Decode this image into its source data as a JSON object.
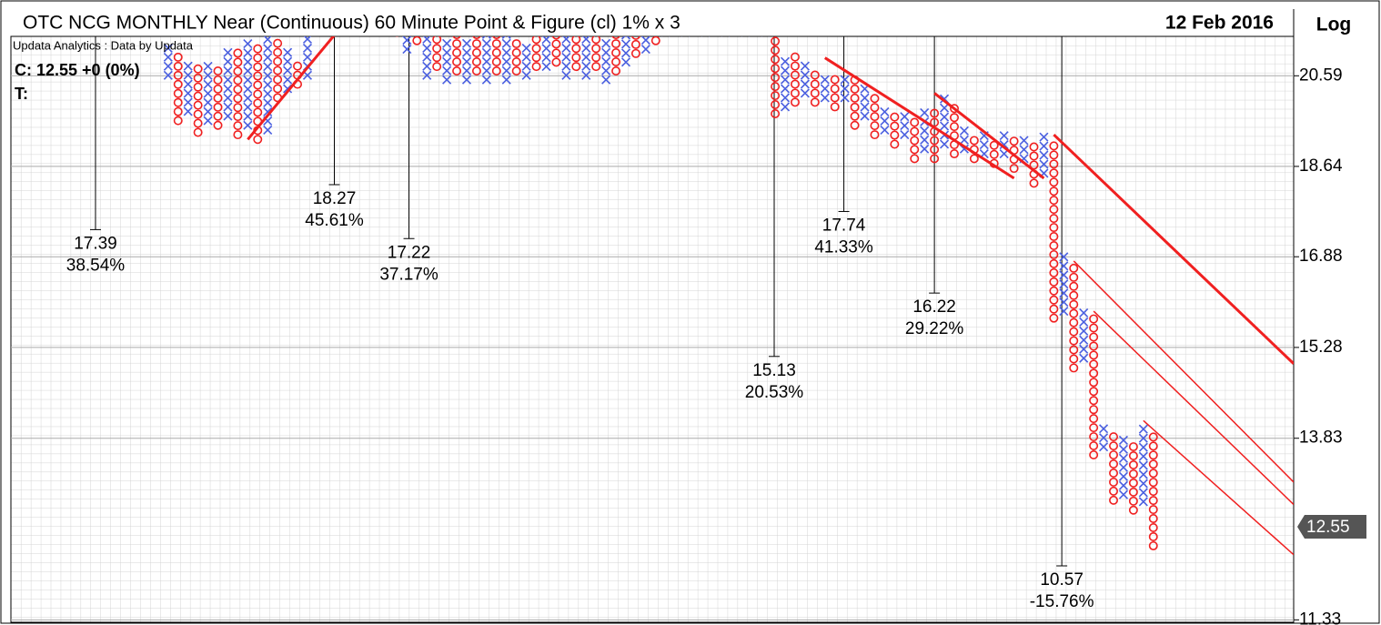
{
  "chart_data": {
    "type": "point-and-figure",
    "title": "OTC NCG MONTHLY Near (Continuous) 60 Minute Point & Figure (cl) 1% x 3",
    "date": "12 Feb 2016",
    "scale_label": "Log",
    "source": "Updata Analytics : Data by Updata",
    "close_label": "C: 12.55  +0 (0%)",
    "target_label": "T:",
    "log_scale": true,
    "ylim": [
      11.3,
      21.5
    ],
    "yticks": [
      20.59,
      18.64,
      16.88,
      15.28,
      13.83,
      11.33
    ],
    "current": 12.55,
    "xlim": [
      -15.8,
      113.1
    ],
    "x_color": "#4a5fe0",
    "o_color": "#f02020",
    "types": [
      "X",
      "O",
      "X",
      "O",
      "X",
      "O",
      "X",
      "O",
      "X",
      "O",
      "X",
      "O",
      "X",
      "O",
      "X",
      "O",
      "X",
      "O",
      "X",
      "O",
      "X",
      "O",
      "X",
      "O",
      "X",
      "O",
      "X",
      "O",
      "X",
      "O",
      "X",
      "O",
      "X",
      "O",
      "X",
      "O",
      "X",
      "O",
      "X",
      "O",
      "X",
      "O",
      "X",
      "O",
      "X",
      "O",
      "X",
      "O",
      "X",
      "O",
      "X",
      "O",
      "X",
      "O",
      "X",
      "O",
      "X",
      "O",
      "X",
      "O",
      "X",
      "O",
      "X",
      "O",
      "X",
      "O",
      "X",
      "O",
      "X",
      "O",
      "X",
      "O",
      "X",
      "O",
      "X",
      "O",
      "X",
      "O",
      "X",
      "O",
      "X",
      "O",
      "X",
      "O",
      "X",
      "O",
      "X",
      "O",
      "X",
      "O",
      "X",
      "O",
      "X",
      "O",
      "X",
      "O",
      "X",
      "O",
      "X",
      "O"
    ],
    "lows": [
      20.6,
      19.6,
      19.8,
      19.35,
      19.6,
      19.5,
      19.7,
      19.3,
      19.5,
      19.2,
      19.4,
      20.1,
      20.3,
      20.4,
      20.6,
      21.7,
      21.9,
      21.7,
      21.9,
      21.7,
      21.9,
      21.7,
      21.9,
      21.6,
      21.2,
      21.4,
      20.6,
      20.8,
      20.5,
      20.7,
      20.5,
      20.7,
      20.5,
      20.7,
      20.5,
      20.7,
      20.6,
      20.8,
      20.8,
      20.9,
      20.6,
      20.8,
      20.6,
      20.8,
      20.5,
      20.7,
      20.9,
      21.1,
      21.2,
      21.4,
      21.6,
      21.8,
      21.6,
      21.8,
      21.6,
      21.8,
      21.6,
      21.8,
      21.6,
      21.8,
      21.6,
      19.75,
      19.9,
      20.0,
      20.2,
      20.0,
      20.1,
      19.9,
      20.1,
      19.5,
      19.7,
      19.3,
      19.4,
      19.1,
      19.3,
      18.8,
      19.0,
      18.8,
      19.1,
      18.9,
      19.0,
      18.8,
      18.9,
      18.7,
      18.9,
      18.6,
      18.8,
      18.3,
      18.5,
      15.78,
      15.9,
      14.94,
      15.1,
      13.58,
      13.7,
      12.92,
      13.0,
      12.78,
      12.9,
      12.29
    ],
    "highs": [
      21.3,
      21.2,
      21.0,
      20.8,
      21.0,
      20.9,
      21.3,
      21.2,
      21.5,
      21.3,
      21.7,
      21.5,
      21.2,
      21.0,
      22.0,
      22.4,
      22.6,
      22.5,
      22.8,
      22.7,
      22.9,
      22.8,
      22.8,
      22.6,
      22.4,
      22.2,
      22.0,
      21.6,
      21.5,
      21.6,
      21.5,
      21.8,
      21.6,
      21.8,
      21.7,
      21.5,
      21.4,
      21.6,
      21.5,
      21.6,
      21.5,
      21.6,
      21.5,
      21.6,
      21.5,
      21.7,
      21.6,
      21.8,
      21.7,
      22.2,
      22.4,
      22.5,
      22.6,
      22.8,
      22.7,
      22.8,
      22.6,
      22.7,
      22.5,
      22.6,
      22.4,
      22.2,
      21.0,
      21.2,
      20.9,
      20.8,
      20.7,
      20.6,
      20.6,
      20.5,
      20.3,
      20.2,
      19.8,
      19.7,
      19.7,
      19.6,
      19.9,
      19.8,
      20.2,
      20.0,
      19.4,
      19.3,
      19.3,
      19.2,
      19.3,
      19.2,
      19.3,
      19.1,
      19.3,
      19.2,
      16.9,
      16.7,
      15.9,
      15.8,
      14.0,
      13.9,
      13.9,
      13.8,
      14.0,
      13.9
    ],
    "trendlines": [
      {
        "from": [
          8,
          19.2
        ],
        "to": [
          18,
          21.9
        ],
        "weight": 3
      },
      {
        "from": [
          66,
          21.0
        ],
        "to": [
          85,
          18.4
        ],
        "weight": 3
      },
      {
        "from": [
          77,
          20.2
        ],
        "to": [
          88,
          18.4
        ],
        "weight": 3
      },
      {
        "from": [
          89,
          19.3
        ],
        "to": [
          113.1,
          15.01
        ],
        "weight": 3
      },
      {
        "from": [
          91,
          16.8
        ],
        "to": [
          113.1,
          13.18
        ],
        "weight": 1.5
      },
      {
        "from": [
          93,
          15.9
        ],
        "to": [
          113.1,
          12.86
        ],
        "weight": 1.5
      },
      {
        "from": [
          98,
          14.1
        ],
        "to": [
          113.1,
          12.17
        ],
        "weight": 1.5
      }
    ],
    "target_cols": [
      -7.3,
      16.7,
      24.2,
      60.9,
      67.9,
      77,
      89.8
    ],
    "targets": [
      17.39,
      18.27,
      17.22,
      15.13,
      17.74,
      16.22,
      10.57
    ],
    "percent_labels": [
      "38.54%",
      "45.61%",
      "37.17%",
      "20.53%",
      "41.33%",
      "29.22%",
      "-15.76%"
    ]
  }
}
